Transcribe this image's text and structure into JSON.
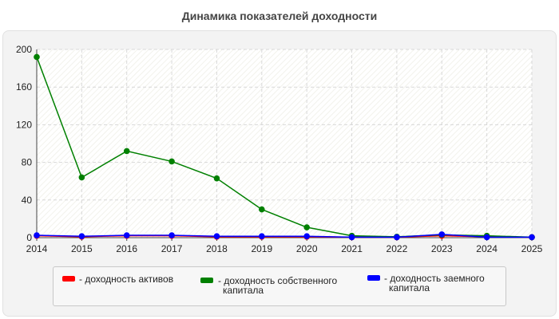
{
  "chart_data": {
    "type": "line",
    "title": "Динамика показателей доходности",
    "x": [
      "2014",
      "2015",
      "2016",
      "2017",
      "2018",
      "2019",
      "2020",
      "2021",
      "2022",
      "2023",
      "2024",
      "2025"
    ],
    "ylim": [
      0,
      200
    ],
    "yticks": [
      "0",
      "40",
      "80",
      "120",
      "160",
      "200"
    ],
    "grid": true,
    "legend_position": "bottom",
    "series": [
      {
        "name": "доходность активов",
        "color": "#ff0000",
        "values": [
          2,
          1,
          2,
          2,
          1,
          1,
          1,
          0.5,
          0.5,
          2,
          1,
          0.5
        ]
      },
      {
        "name": "доходность собственного капитала",
        "color": "#008000",
        "values": [
          192,
          64,
          92,
          81,
          63,
          30,
          11,
          2,
          1,
          3,
          2,
          0.5
        ]
      },
      {
        "name": "доходность заемного капитала",
        "color": "#0000ff",
        "values": [
          2.5,
          1.5,
          2.5,
          2.5,
          1.5,
          1.5,
          1.5,
          0.5,
          0.5,
          3.5,
          0.5,
          0.5
        ]
      }
    ]
  },
  "legend": {
    "items": [
      {
        "line1": "- доходность активов",
        "line2": ""
      },
      {
        "line1": "- доходность собственного",
        "line2": "капитала"
      },
      {
        "line1": "- доходность заемного",
        "line2": "капитала"
      }
    ]
  }
}
